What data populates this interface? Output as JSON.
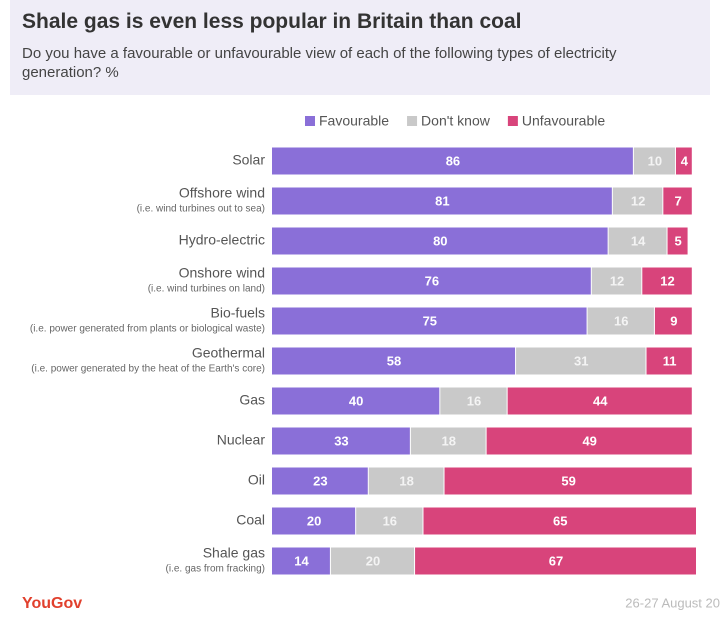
{
  "chart_data": {
    "type": "bar",
    "orientation": "horizontal",
    "stacked": true,
    "title": "Shale gas is even less popular in Britain than coal",
    "subtitle": "Do you have a favourable or unfavourable view of each of the following types of electricity generation? %",
    "categories": [
      "Solar",
      "Offshore wind",
      "Hydro-electric",
      "Onshore wind",
      "Bio-fuels",
      "Geothermal",
      "Gas",
      "Nuclear",
      "Oil",
      "Coal",
      "Shale gas"
    ],
    "category_notes": [
      null,
      "(i.e. wind turbines out to sea)",
      null,
      "(i.e. wind turbines on land)",
      "(i.e. power generated from plants or biological waste)",
      "(i.e. power generated by the heat of the Earth's core)",
      null,
      null,
      null,
      null,
      "(i.e. gas from fracking)"
    ],
    "series": [
      {
        "name": "Favourable",
        "color": "#8a6fd8",
        "label_color": "#ffffff",
        "values": [
          86,
          81,
          80,
          76,
          75,
          58,
          40,
          33,
          23,
          20,
          14
        ]
      },
      {
        "name": "Don't know",
        "color": "#c9c9c9",
        "label_color": "#f4f4f4",
        "values": [
          10,
          12,
          14,
          12,
          16,
          31,
          16,
          18,
          18,
          16,
          20
        ]
      },
      {
        "name": "Unfavourable",
        "color": "#d8447b",
        "label_color": "#ffffff",
        "values": [
          4,
          7,
          5,
          12,
          9,
          11,
          44,
          49,
          59,
          65,
          67
        ]
      }
    ],
    "xlim": [
      0,
      101
    ],
    "source": "YouGov",
    "date": "26-27 August 20"
  }
}
